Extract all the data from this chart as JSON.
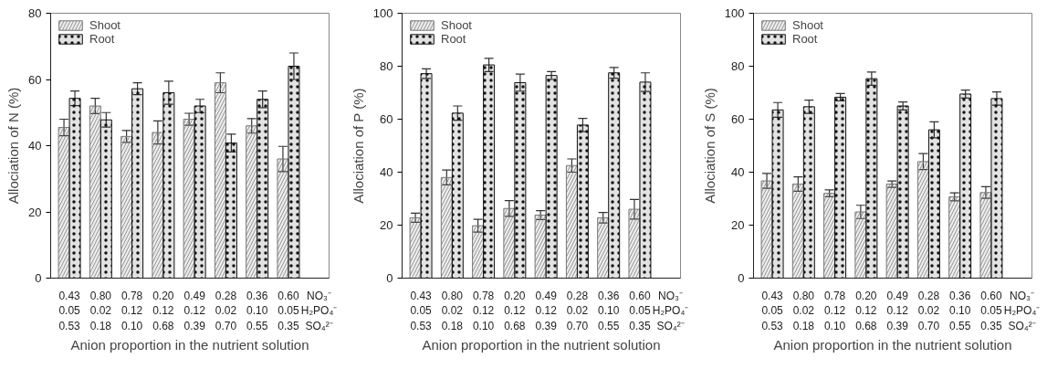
{
  "chart_data": [
    {
      "type": "bar",
      "ylabel": "Allociation of N (%)",
      "xlabel": "Anion proportion in the nutrient solution",
      "categories": [
        "0.43\n0.05\n0.53",
        "0.80\n0.02\n0.18",
        "0.78\n0.12\n0.10",
        "0.20\n0.12\n0.68",
        "0.49\n0.12\n0.39",
        "0.28\n0.02\n0.70",
        "0.36\n0.10\n0.55",
        "0.60\n0.05\n0.35"
      ],
      "series": [
        {
          "name": "Shoot",
          "color": "#777777",
          "values": [
            45.5,
            52,
            42.8,
            44,
            48,
            59,
            46,
            36
          ],
          "errors": [
            2.5,
            2.3,
            1.8,
            3.5,
            1.8,
            3,
            2.2,
            3.8
          ]
        },
        {
          "name": "Root",
          "color": "#111111",
          "values": [
            54.3,
            47.8,
            57.2,
            56,
            52,
            40.8,
            54,
            64
          ],
          "errors": [
            2.2,
            2.2,
            1.8,
            3.5,
            2,
            2.7,
            2.5,
            4
          ]
        }
      ],
      "ylim": [
        0,
        80
      ],
      "yticks": [
        0,
        20,
        40,
        60,
        80
      ],
      "grid": false,
      "legend": "top left",
      "annotations": [
        "NO₃⁻",
        "H₂PO₄⁻",
        "SO₄²⁻"
      ]
    },
    {
      "type": "bar",
      "ylabel": "Allociation of P (%)",
      "xlabel": "Anion proportion in the nutrient solution",
      "categories": [
        "0.43\n0.05\n0.53",
        "0.80\n0.02\n0.18",
        "0.78\n0.12\n0.10",
        "0.20\n0.12\n0.68",
        "0.49\n0.12\n0.39",
        "0.28\n0.02\n0.70",
        "0.36\n0.10\n0.55",
        "0.60\n0.05\n0.35"
      ],
      "series": [
        {
          "name": "Shoot",
          "color": "#777777",
          "values": [
            22.8,
            38,
            19.8,
            26.3,
            23.8,
            42.5,
            22.8,
            26
          ],
          "errors": [
            1.7,
            2.8,
            2.4,
            3,
            1.7,
            2.5,
            2,
            3.7
          ]
        },
        {
          "name": "Root",
          "color": "#111111",
          "values": [
            77.2,
            62.3,
            80.5,
            73.8,
            76.5,
            57.8,
            77.5,
            74
          ],
          "errors": [
            1.8,
            2.7,
            2.5,
            3.2,
            1.5,
            2.5,
            2,
            3.5
          ]
        }
      ],
      "ylim": [
        0,
        100
      ],
      "yticks": [
        0,
        20,
        40,
        60,
        80,
        100
      ],
      "grid": false,
      "legend": "top left",
      "annotations": [
        "NO₃⁻",
        "H₂PO₄⁻",
        "SO₄²⁻"
      ]
    },
    {
      "type": "bar",
      "ylabel": "Allociation of S (%)",
      "xlabel": "Anion proportion in the nutrient solution",
      "categories": [
        "0.43\n0.05\n0.53",
        "0.80\n0.02\n0.18",
        "0.78\n0.12\n0.10",
        "0.20\n0.12\n0.68",
        "0.49\n0.12\n0.39",
        "0.28\n0.02\n0.70",
        "0.36\n0.10\n0.55",
        "0.60\n0.05\n0.35"
      ],
      "series": [
        {
          "name": "Shoot",
          "color": "#777777",
          "values": [
            36.7,
            35.5,
            32,
            25,
            35.5,
            44,
            30.7,
            32.3
          ],
          "errors": [
            2.8,
            2.7,
            1.3,
            2.5,
            1.2,
            3,
            1.5,
            2.2
          ]
        },
        {
          "name": "Root",
          "color": "#111111",
          "values": [
            63.5,
            64.7,
            68.3,
            75.3,
            65,
            56,
            69.5,
            67.8
          ],
          "errors": [
            2.8,
            2.5,
            1.4,
            2.5,
            1.5,
            3,
            1.5,
            2.5
          ]
        }
      ],
      "ylim": [
        0,
        100
      ],
      "yticks": [
        0,
        20,
        40,
        60,
        80,
        100
      ],
      "grid": false,
      "legend": "top left",
      "annotations": [
        "NO₃⁻",
        "H₂PO₄⁻",
        "SO₄²⁻"
      ]
    }
  ]
}
